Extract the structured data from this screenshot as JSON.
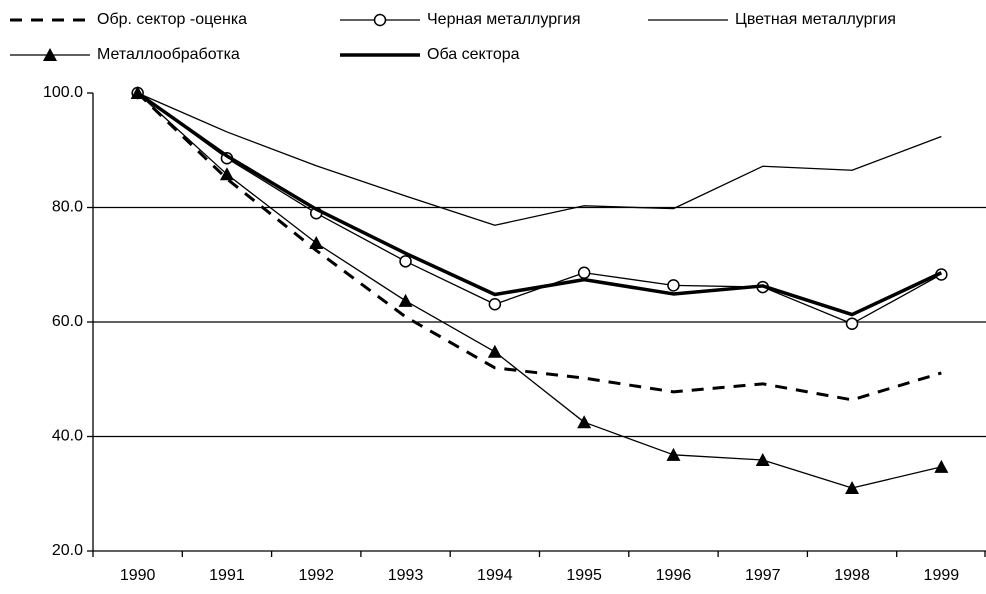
{
  "chart_data": {
    "type": "line",
    "categories": [
      "1990",
      "1991",
      "1992",
      "1993",
      "1994",
      "1995",
      "1996",
      "1997",
      "1998",
      "1999"
    ],
    "series": [
      {
        "name": "Обр. сектор -оценка",
        "color": "#000000",
        "dash": true,
        "line_width": 3,
        "marker": null,
        "values": [
          100,
          85,
          72.5,
          60.9,
          52,
          50.2,
          47.8,
          49.2,
          46.4,
          51.1
        ]
      },
      {
        "name": "Черная металлургия",
        "color": "#000000",
        "dash": false,
        "line_width": 1.3,
        "marker": "circle",
        "values": [
          100,
          88.6,
          79,
          70.6,
          63.1,
          68.6,
          66.4,
          66.1,
          59.7,
          68.3
        ]
      },
      {
        "name": "Цветная металлургия",
        "color": "#000000",
        "dash": false,
        "line_width": 1.3,
        "marker": null,
        "values": [
          100,
          93.2,
          87.3,
          82,
          76.9,
          80.3,
          79.8,
          87.2,
          86.5,
          92.4
        ]
      },
      {
        "name": "Металлообработка",
        "color": "#000000",
        "dash": false,
        "line_width": 1.3,
        "marker": "triangle",
        "values": [
          100,
          85.8,
          73.8,
          63.7,
          54.8,
          42.5,
          36.8,
          35.9,
          31,
          34.7
        ]
      },
      {
        "name": "Оба сектора",
        "color": "#000000",
        "dash": false,
        "line_width": 3.5,
        "marker": null,
        "values": [
          100,
          89,
          79.7,
          72,
          64.8,
          67.4,
          64.9,
          66.3,
          61.3,
          68.6
        ]
      }
    ],
    "ylim": [
      20,
      100
    ],
    "yticks": [
      {
        "value": 20,
        "label": "20.0"
      },
      {
        "value": 40,
        "label": "40.0"
      },
      {
        "value": 60,
        "label": "60.0"
      },
      {
        "value": 80,
        "label": "80.0"
      },
      {
        "value": 100,
        "label": "100.0"
      }
    ],
    "grid": true,
    "legend": "top"
  }
}
